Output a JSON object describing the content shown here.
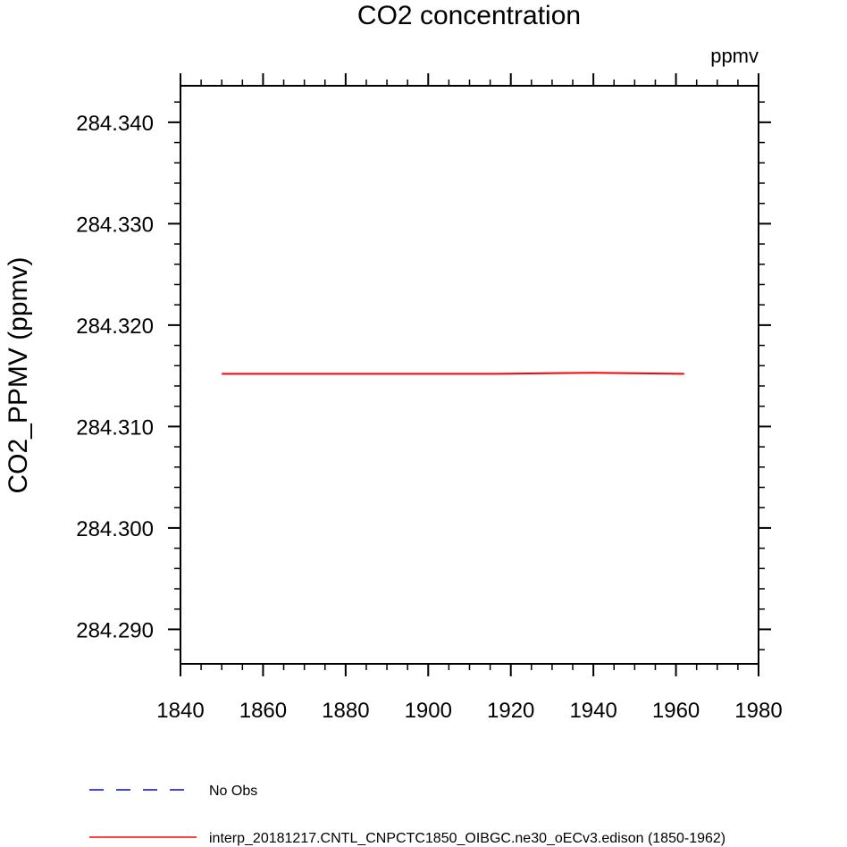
{
  "chart_data": {
    "type": "line",
    "title": "CO2 concentration",
    "units": "ppmv",
    "ylabel": "CO2_PPMV  (ppmv)",
    "xlabel": "",
    "xlim": [
      1840,
      1980
    ],
    "ylim": [
      284.2866,
      284.3436
    ],
    "x_ticks": [
      1840,
      1860,
      1880,
      1900,
      1920,
      1940,
      1960,
      1980
    ],
    "x_tick_labels": [
      "1840",
      "1860",
      "1880",
      "1900",
      "1920",
      "1940",
      "1960",
      "1980"
    ],
    "y_ticks": [
      284.29,
      284.3,
      284.31,
      284.32,
      284.33,
      284.34
    ],
    "y_tick_labels": [
      "284.290",
      "284.300",
      "284.310",
      "284.320",
      "284.330",
      "284.340"
    ],
    "grid": false,
    "legend_position": "bottom",
    "series": [
      {
        "name": "No Obs",
        "color": "#0000ff",
        "dash": "dashed",
        "x": [],
        "y": []
      },
      {
        "name": "interp_20181217.CNTL_CNPCTC1850_OIBGC.ne30_oECv3.edison (1850-1962)",
        "color": "#ff0000",
        "dash": "solid",
        "x": [
          1850,
          1917,
          1940,
          1962
        ],
        "y": [
          284.3152,
          284.3152,
          284.3153,
          284.3152
        ]
      }
    ]
  }
}
